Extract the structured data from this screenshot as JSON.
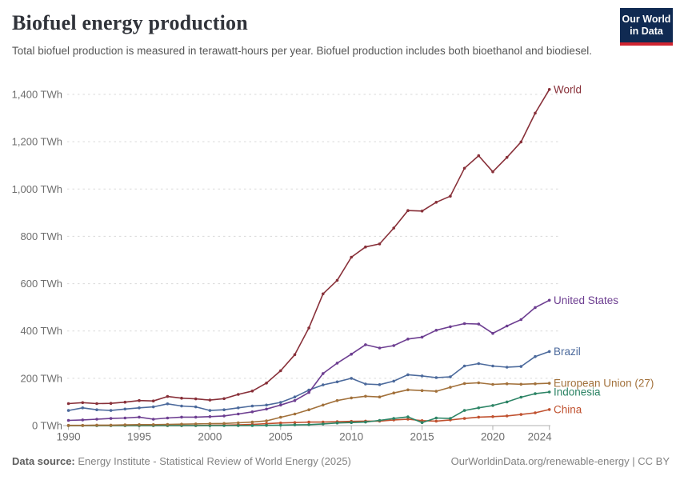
{
  "header": {
    "title": "Biofuel energy production",
    "subtitle": "Total biofuel production is measured in terawatt-hours per year. Biofuel production includes both bioethanol and biodiesel."
  },
  "logo": {
    "line1": "Our World",
    "line2": "in Data",
    "bg_color": "#102a52",
    "accent_color": "#cf2430"
  },
  "footer": {
    "source_label": "Data source:",
    "source_text": " Energy Institute - Statistical Review of World Energy (2025)",
    "right_text": "OurWorldinData.org/renewable-energy | CC BY"
  },
  "chart_data": {
    "type": "line",
    "title": "Biofuel energy production",
    "unit": "TWh",
    "xlabel": "",
    "ylabel": "TWh",
    "xlim": [
      1990,
      2024
    ],
    "ylim": [
      0,
      1400
    ],
    "grid": "horizontal dashed",
    "legend_position": "line-end labels",
    "x": [
      1990,
      1991,
      1992,
      1993,
      1994,
      1995,
      1996,
      1997,
      1998,
      1999,
      2000,
      2001,
      2002,
      2003,
      2004,
      2005,
      2006,
      2007,
      2008,
      2009,
      2010,
      2011,
      2012,
      2013,
      2014,
      2015,
      2016,
      2017,
      2018,
      2019,
      2020,
      2021,
      2022,
      2023,
      2024
    ],
    "series": [
      {
        "name": "World",
        "color": "#883039",
        "values": [
          93,
          97,
          93,
          94,
          99,
          106,
          104,
          123,
          116,
          113,
          108,
          114,
          132,
          146,
          180,
          232,
          300,
          413,
          557,
          614,
          712,
          755,
          768,
          835,
          909,
          907,
          944,
          970,
          1088,
          1141,
          1073,
          1134,
          1199,
          1321,
          1421
        ]
      },
      {
        "name": "United States",
        "color": "#6d3e91",
        "values": [
          22,
          24,
          27,
          30,
          32,
          36,
          27,
          32,
          36,
          36,
          38,
          41,
          49,
          58,
          70,
          87,
          106,
          140,
          220,
          264,
          302,
          342,
          328,
          338,
          366,
          374,
          403,
          418,
          431,
          429,
          390,
          421,
          448,
          499,
          530
        ]
      },
      {
        "name": "Brazil",
        "color": "#4c6a9c",
        "values": [
          64,
          75,
          67,
          64,
          70,
          75,
          79,
          92,
          83,
          79,
          64,
          67,
          75,
          83,
          87,
          98,
          121,
          150,
          172,
          185,
          200,
          176,
          173,
          188,
          215,
          210,
          203,
          206,
          252,
          262,
          252,
          247,
          250,
          292,
          313
        ]
      },
      {
        "name": "European Union (27)",
        "color": "#a2713b",
        "values": [
          1,
          1,
          2,
          2,
          3,
          4,
          4,
          5,
          6,
          7,
          8,
          9,
          12,
          15,
          20,
          35,
          49,
          67,
          87,
          106,
          117,
          124,
          121,
          138,
          151,
          148,
          145,
          162,
          178,
          181,
          174,
          177,
          175,
          177,
          179
        ]
      },
      {
        "name": "Indonesia",
        "color": "#2c8465",
        "values": [
          0,
          0,
          0,
          0,
          0,
          0,
          0,
          0,
          0,
          0,
          0,
          0,
          0,
          0,
          1,
          2,
          3,
          4,
          7,
          11,
          13,
          15,
          22,
          30,
          37,
          13,
          32,
          30,
          64,
          75,
          85,
          100,
          120,
          135,
          142
        ]
      },
      {
        "name": "China",
        "color": "#c0512f",
        "values": [
          0,
          0,
          0,
          0,
          0,
          0,
          0,
          0,
          0,
          0,
          1,
          2,
          3,
          5,
          8,
          11,
          13,
          15,
          15,
          17,
          18,
          19,
          19,
          24,
          27,
          21,
          19,
          24,
          30,
          36,
          38,
          41,
          47,
          54,
          68
        ]
      }
    ],
    "yticks": {
      "values": [
        0,
        200,
        400,
        600,
        800,
        1000,
        1200,
        1400
      ],
      "labels": [
        "0 TWh",
        "200 TWh",
        "400 TWh",
        "600 TWh",
        "800 TWh",
        "1,000 TWh",
        "1,200 TWh",
        "1,400 TWh"
      ]
    },
    "xticks": {
      "values": [
        1990,
        1995,
        2000,
        2005,
        2010,
        2015,
        2020,
        2024
      ],
      "labels": [
        "1990",
        "1995",
        "2000",
        "2005",
        "2010",
        "2015",
        "2020",
        "2024"
      ]
    }
  }
}
